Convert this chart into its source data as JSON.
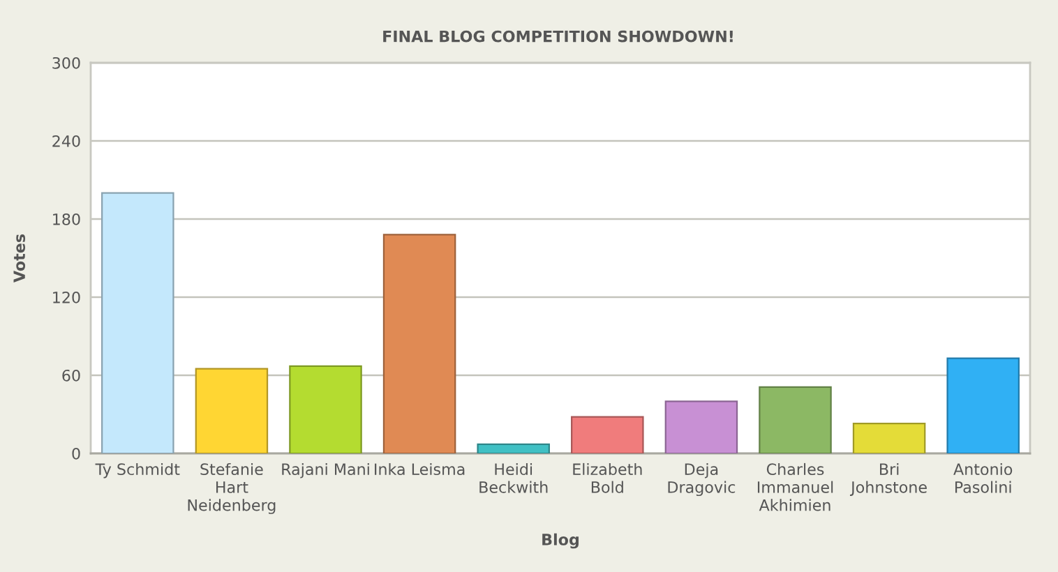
{
  "chart_data": {
    "type": "bar",
    "title": "FINAL BLOG COMPETITION SHOWDOWN!",
    "xlabel": "Blog",
    "ylabel": "Votes",
    "categories": [
      "Ty Schmidt",
      "Stefanie Hart Neidenberg",
      "Rajani Mani",
      "Inka Leisma",
      "Heidi Beckwith",
      "Elizabeth Bold",
      "Deja Dragovic",
      "Charles Immanuel Akhimien",
      "Bri Johnstone",
      "Antonio Pasolini"
    ],
    "values": [
      200,
      65,
      67,
      168,
      7,
      28,
      40,
      51,
      23,
      73
    ],
    "colors": [
      "#c4e8fc",
      "#ffd633",
      "#b4dc30",
      "#e08a54",
      "#40c0c4",
      "#f07c7c",
      "#c890d4",
      "#8cb864",
      "#e4dc38",
      "#30b0f4"
    ],
    "ylim": [
      0,
      300
    ],
    "yticks": [
      0,
      60,
      120,
      180,
      240,
      300
    ],
    "grid": "y"
  }
}
